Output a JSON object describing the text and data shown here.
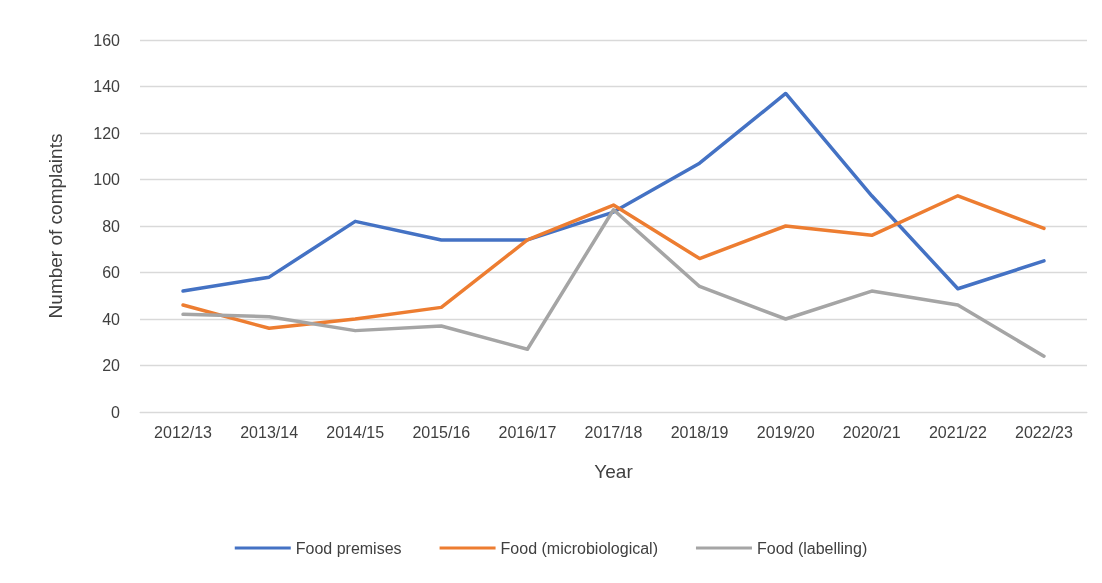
{
  "chart_data": {
    "type": "line",
    "xlabel": "Year",
    "ylabel": "Number of complaints",
    "categories": [
      "2012/13",
      "2013/14",
      "2014/15",
      "2015/16",
      "2016/17",
      "2017/18",
      "2018/19",
      "2019/20",
      "2020/21",
      "2021/22",
      "2022/23"
    ],
    "series": [
      {
        "name": "Food premises",
        "color": "#4472c4",
        "values": [
          52,
          58,
          82,
          74,
          74,
          86,
          107,
          137,
          93,
          53,
          65
        ]
      },
      {
        "name": "Food (microbiological)",
        "color": "#ed7d31",
        "values": [
          46,
          36,
          40,
          45,
          74,
          89,
          66,
          80,
          76,
          93,
          79
        ]
      },
      {
        "name": "Food (labelling)",
        "color": "#a5a5a5",
        "values": [
          42,
          41,
          35,
          37,
          27,
          87,
          54,
          40,
          52,
          46,
          24
        ]
      }
    ],
    "ylim": [
      0,
      160
    ],
    "yticks": [
      0,
      20,
      40,
      60,
      80,
      100,
      120,
      140,
      160
    ],
    "grid": "y",
    "legend": "bottom",
    "marker": "none",
    "line_style": "solid"
  }
}
